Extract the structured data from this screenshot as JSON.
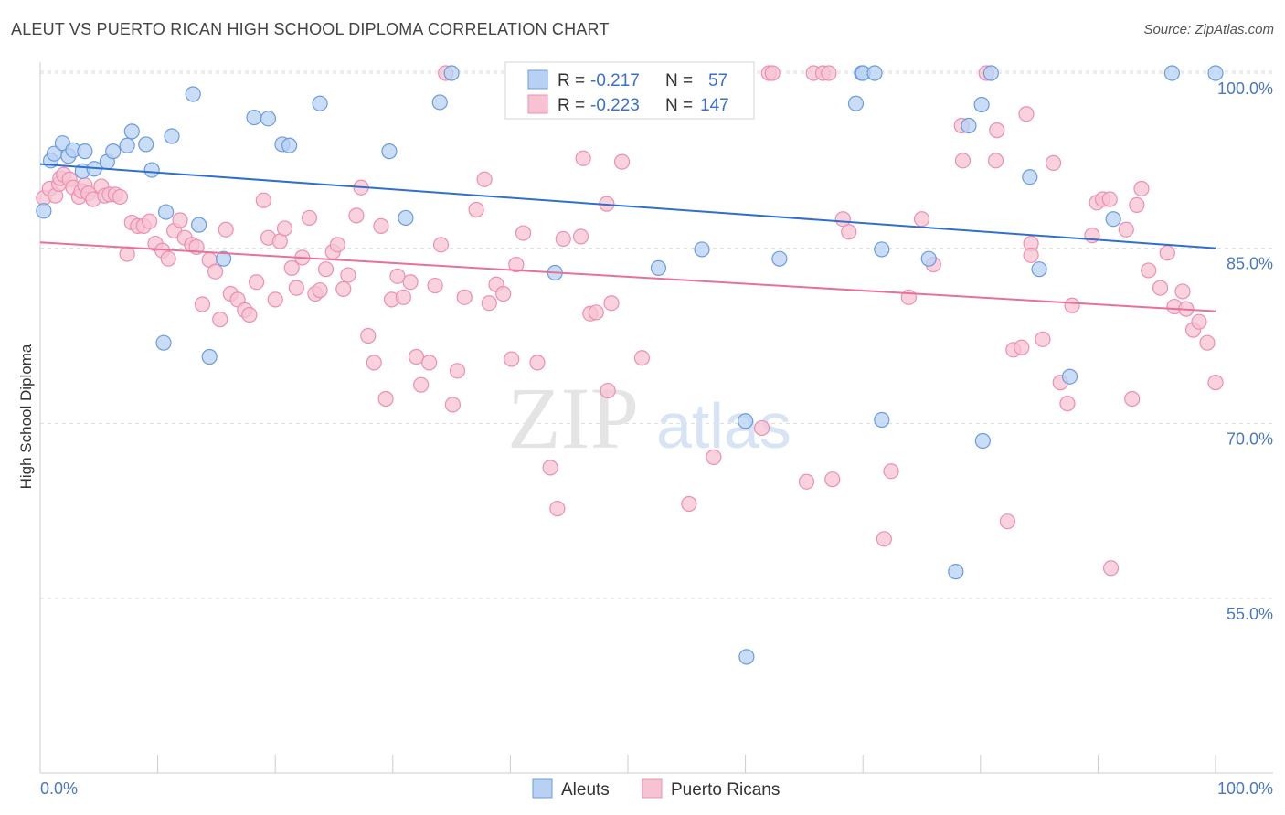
{
  "title": "ALEUT VS PUERTO RICAN HIGH SCHOOL DIPLOMA CORRELATION CHART",
  "source": "Source: ZipAtlas.com",
  "watermark": {
    "zip": "ZIP",
    "atlas": "atlas"
  },
  "legend_box": {
    "rows": [
      {
        "r_label": "R =",
        "r_value": "-0.217",
        "n_label": "N =",
        "n_value": "57"
      },
      {
        "r_label": "R =",
        "r_value": "-0.223",
        "n_label": "N =",
        "n_value": "147"
      }
    ]
  },
  "bottom_legend": [
    "Aleuts",
    "Puerto Ricans"
  ],
  "colors": {
    "aleut_fill": "#b8d1f3",
    "aleut_stroke": "#6b9be0",
    "aleut_line": "#2f6fd0",
    "pr_fill": "#f7c3d3",
    "pr_stroke": "#ec8fb0",
    "pr_line": "#e8709a",
    "axis_label": "#4a78c2",
    "grid": "#dddddd"
  },
  "chart_data": {
    "type": "scatter",
    "title": "ALEUT VS PUERTO RICAN HIGH SCHOOL DIPLOMA CORRELATION CHART",
    "xlabel": "",
    "ylabel": "High School Diploma",
    "xlim": [
      0,
      100
    ],
    "ylim": [
      38,
      102
    ],
    "x_tick_labels": [
      "0.0%",
      "100.0%"
    ],
    "y_ticks": [
      55,
      70,
      85,
      100
    ],
    "y_tick_labels": [
      "55.0%",
      "70.0%",
      "85.0%",
      "100.0%"
    ],
    "grid": "horizontal dashed",
    "series": [
      {
        "name": "Aleuts",
        "r": -0.217,
        "n": 57,
        "trend": {
          "x": [
            0,
            100
          ],
          "y": [
            92.2,
            85.0
          ]
        },
        "points": [
          [
            0.3,
            88.2
          ],
          [
            0.9,
            92.5
          ],
          [
            1.2,
            93.1
          ],
          [
            1.9,
            94.0
          ],
          [
            2.4,
            92.9
          ],
          [
            2.8,
            93.4
          ],
          [
            3.6,
            91.6
          ],
          [
            3.8,
            93.3
          ],
          [
            4.6,
            91.8
          ],
          [
            5.7,
            92.4
          ],
          [
            6.2,
            93.3
          ],
          [
            7.4,
            93.8
          ],
          [
            7.8,
            95.0
          ],
          [
            9.0,
            93.9
          ],
          [
            9.5,
            91.7
          ],
          [
            10.5,
            76.9
          ],
          [
            10.7,
            88.1
          ],
          [
            11.2,
            94.6
          ],
          [
            13.0,
            98.2
          ],
          [
            13.5,
            87.0
          ],
          [
            14.4,
            75.7
          ],
          [
            15.6,
            84.1
          ],
          [
            18.2,
            96.2
          ],
          [
            19.4,
            96.1
          ],
          [
            20.6,
            93.9
          ],
          [
            21.2,
            93.8
          ],
          [
            23.8,
            97.4
          ],
          [
            29.7,
            93.3
          ],
          [
            31.1,
            87.6
          ],
          [
            34.0,
            97.5
          ],
          [
            35.0,
            100.0
          ],
          [
            43.8,
            82.9
          ],
          [
            47.5,
            100.0
          ],
          [
            52.6,
            83.3
          ],
          [
            56.3,
            100.0
          ],
          [
            56.3,
            84.9
          ],
          [
            60.0,
            70.2
          ],
          [
            60.1,
            50.0
          ],
          [
            62.9,
            84.1
          ],
          [
            69.9,
            100.0
          ],
          [
            70.0,
            100.0
          ],
          [
            69.4,
            97.4
          ],
          [
            71.0,
            100.0
          ],
          [
            71.6,
            84.9
          ],
          [
            71.6,
            70.3
          ],
          [
            75.6,
            84.1
          ],
          [
            77.9,
            57.3
          ],
          [
            79.0,
            95.5
          ],
          [
            80.1,
            97.3
          ],
          [
            80.2,
            68.5
          ],
          [
            80.9,
            100.0
          ],
          [
            84.2,
            91.1
          ],
          [
            85.0,
            83.2
          ],
          [
            87.6,
            74.0
          ],
          [
            91.3,
            87.5
          ],
          [
            96.3,
            100.0
          ],
          [
            100.0,
            100.0
          ]
        ]
      },
      {
        "name": "Puerto Ricans",
        "r": -0.223,
        "n": 147,
        "trend": {
          "x": [
            0,
            100
          ],
          "y": [
            85.5,
            79.6
          ]
        },
        "points": [
          [
            0.3,
            89.3
          ],
          [
            0.8,
            90.1
          ],
          [
            1.3,
            89.5
          ],
          [
            1.6,
            90.5
          ],
          [
            1.7,
            91.0
          ],
          [
            2.0,
            91.3
          ],
          [
            2.5,
            90.9
          ],
          [
            2.8,
            90.2
          ],
          [
            3.3,
            89.4
          ],
          [
            3.5,
            89.9
          ],
          [
            3.8,
            90.4
          ],
          [
            4.1,
            89.7
          ],
          [
            4.5,
            89.2
          ],
          [
            5.2,
            90.3
          ],
          [
            5.5,
            89.5
          ],
          [
            5.9,
            89.6
          ],
          [
            6.4,
            89.6
          ],
          [
            6.8,
            89.4
          ],
          [
            7.4,
            84.5
          ],
          [
            7.8,
            87.2
          ],
          [
            8.3,
            86.9
          ],
          [
            8.8,
            86.9
          ],
          [
            9.3,
            87.3
          ],
          [
            9.8,
            85.4
          ],
          [
            10.4,
            84.8
          ],
          [
            10.9,
            84.1
          ],
          [
            11.4,
            86.5
          ],
          [
            11.9,
            87.4
          ],
          [
            12.3,
            85.9
          ],
          [
            12.9,
            85.3
          ],
          [
            13.3,
            85.1
          ],
          [
            13.8,
            80.2
          ],
          [
            14.4,
            84.0
          ],
          [
            14.9,
            83.0
          ],
          [
            15.3,
            78.9
          ],
          [
            15.8,
            86.6
          ],
          [
            16.2,
            81.1
          ],
          [
            16.8,
            80.6
          ],
          [
            17.4,
            79.7
          ],
          [
            17.8,
            79.3
          ],
          [
            18.4,
            82.1
          ],
          [
            19.0,
            89.1
          ],
          [
            19.4,
            85.9
          ],
          [
            20.0,
            80.6
          ],
          [
            20.4,
            85.6
          ],
          [
            20.8,
            86.7
          ],
          [
            21.4,
            83.3
          ],
          [
            21.8,
            81.6
          ],
          [
            22.3,
            84.2
          ],
          [
            22.9,
            87.6
          ],
          [
            23.4,
            81.1
          ],
          [
            23.8,
            81.4
          ],
          [
            24.3,
            83.2
          ],
          [
            24.9,
            84.7
          ],
          [
            25.3,
            85.3
          ],
          [
            25.8,
            81.5
          ],
          [
            26.2,
            82.7
          ],
          [
            26.9,
            87.8
          ],
          [
            27.3,
            90.2
          ],
          [
            27.9,
            77.5
          ],
          [
            28.4,
            75.2
          ],
          [
            29.0,
            86.9
          ],
          [
            29.4,
            72.1
          ],
          [
            29.9,
            80.6
          ],
          [
            30.4,
            82.6
          ],
          [
            30.9,
            80.8
          ],
          [
            31.5,
            82.1
          ],
          [
            32.0,
            75.7
          ],
          [
            32.4,
            73.3
          ],
          [
            33.1,
            75.2
          ],
          [
            33.6,
            81.8
          ],
          [
            34.1,
            85.3
          ],
          [
            34.5,
            100.0
          ],
          [
            35.1,
            71.6
          ],
          [
            35.5,
            74.5
          ],
          [
            36.1,
            80.8
          ],
          [
            37.1,
            88.3
          ],
          [
            37.8,
            90.9
          ],
          [
            38.2,
            80.3
          ],
          [
            38.8,
            81.9
          ],
          [
            39.4,
            81.1
          ],
          [
            40.1,
            75.5
          ],
          [
            40.5,
            83.6
          ],
          [
            41.1,
            86.3
          ],
          [
            42.3,
            75.2
          ],
          [
            43.4,
            66.2
          ],
          [
            44.0,
            62.7
          ],
          [
            44.5,
            85.8
          ],
          [
            46.0,
            86.0
          ],
          [
            46.2,
            92.7
          ],
          [
            46.8,
            79.4
          ],
          [
            47.3,
            79.5
          ],
          [
            48.2,
            88.8
          ],
          [
            48.3,
            72.8
          ],
          [
            48.6,
            80.3
          ],
          [
            49.5,
            92.4
          ],
          [
            51.2,
            75.6
          ],
          [
            55.2,
            63.1
          ],
          [
            55.8,
            100.0
          ],
          [
            56.5,
            100.0
          ],
          [
            57.3,
            67.1
          ],
          [
            59.2,
            100.0
          ],
          [
            61.4,
            69.6
          ],
          [
            62.0,
            100.0
          ],
          [
            62.3,
            100.0
          ],
          [
            65.2,
            65.0
          ],
          [
            65.8,
            100.0
          ],
          [
            66.6,
            100.0
          ],
          [
            67.1,
            100.0
          ],
          [
            67.4,
            65.2
          ],
          [
            68.3,
            87.5
          ],
          [
            68.8,
            86.4
          ],
          [
            71.8,
            60.1
          ],
          [
            72.4,
            65.9
          ],
          [
            73.9,
            80.8
          ],
          [
            75.0,
            87.5
          ],
          [
            76.0,
            83.6
          ],
          [
            78.4,
            95.5
          ],
          [
            78.5,
            92.5
          ],
          [
            80.5,
            100.0
          ],
          [
            81.3,
            92.5
          ],
          [
            81.4,
            95.1
          ],
          [
            82.3,
            61.6
          ],
          [
            82.8,
            76.3
          ],
          [
            83.5,
            76.5
          ],
          [
            83.9,
            96.5
          ],
          [
            84.3,
            85.4
          ],
          [
            84.3,
            84.4
          ],
          [
            85.3,
            77.2
          ],
          [
            86.2,
            92.3
          ],
          [
            86.8,
            73.5
          ],
          [
            87.4,
            71.7
          ],
          [
            87.8,
            80.1
          ],
          [
            89.5,
            86.1
          ],
          [
            89.9,
            88.9
          ],
          [
            90.4,
            89.2
          ],
          [
            91.0,
            89.2
          ],
          [
            91.1,
            57.6
          ],
          [
            92.4,
            86.6
          ],
          [
            92.9,
            72.1
          ],
          [
            93.3,
            88.7
          ],
          [
            93.7,
            90.1
          ],
          [
            94.3,
            83.1
          ],
          [
            95.3,
            81.6
          ],
          [
            95.9,
            84.6
          ],
          [
            96.5,
            80.0
          ],
          [
            97.2,
            81.3
          ],
          [
            97.5,
            79.8
          ],
          [
            98.1,
            78.0
          ],
          [
            98.6,
            78.7
          ],
          [
            99.3,
            76.9
          ],
          [
            100.0,
            73.5
          ]
        ]
      }
    ]
  }
}
